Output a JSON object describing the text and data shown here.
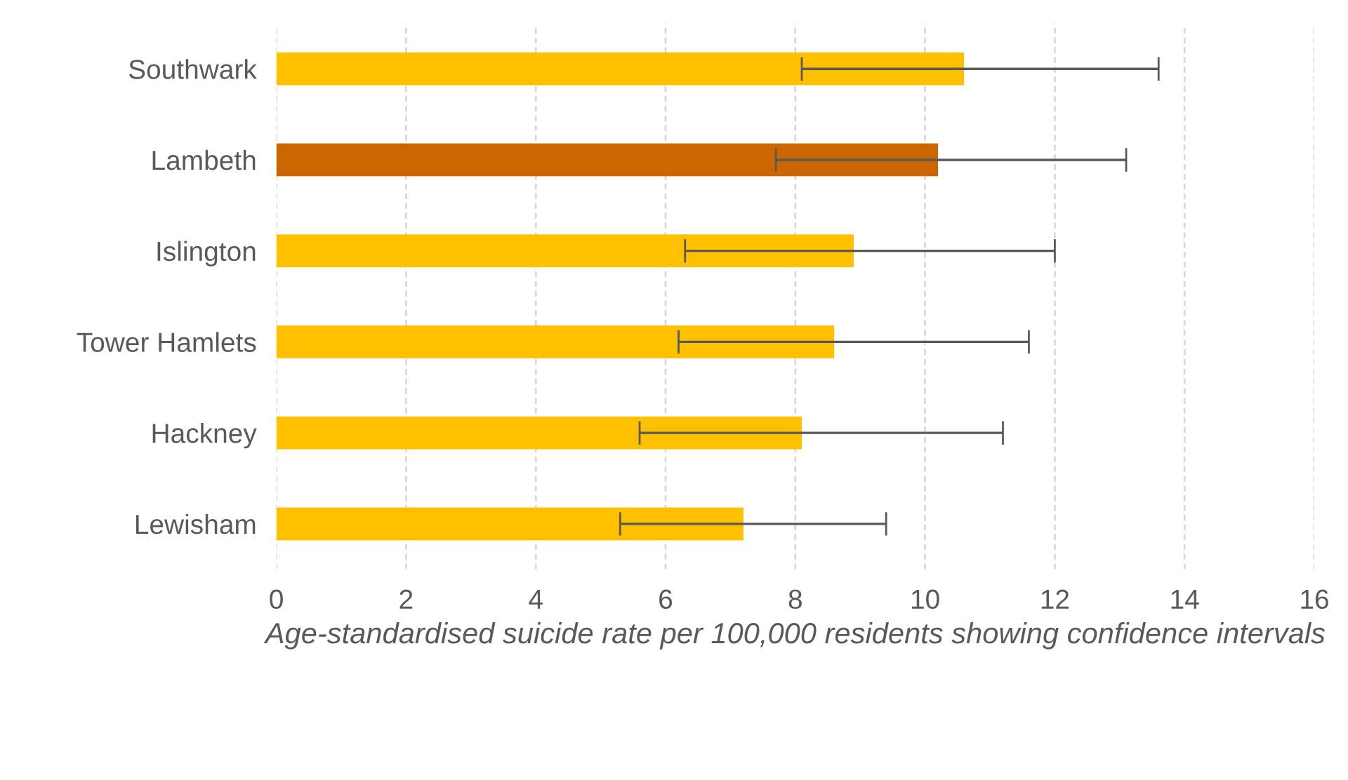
{
  "chart_data": {
    "type": "bar",
    "orientation": "horizontal",
    "xlabel": "Age-standardised suicide rate per 100,000 residents showing confidence intervals",
    "categories": [
      "Southwark",
      "Lambeth",
      "Islington",
      "Tower Hamlets",
      "Hackney",
      "Lewisham"
    ],
    "values": [
      10.6,
      10.2,
      8.9,
      8.6,
      8.1,
      7.2
    ],
    "colors": [
      "#ffc000",
      "#cc6600",
      "#ffc000",
      "#ffc000",
      "#ffc000",
      "#ffc000"
    ],
    "errors": [
      [
        8.1,
        13.6
      ],
      [
        7.7,
        13.1
      ],
      [
        6.3,
        12.0
      ],
      [
        6.2,
        11.6
      ],
      [
        5.6,
        11.2
      ],
      [
        5.3,
        9.4
      ]
    ],
    "xlim": [
      0,
      16
    ],
    "xticks": [
      0,
      2,
      4,
      6,
      8,
      10,
      12,
      14,
      16
    ],
    "grid": "x"
  }
}
